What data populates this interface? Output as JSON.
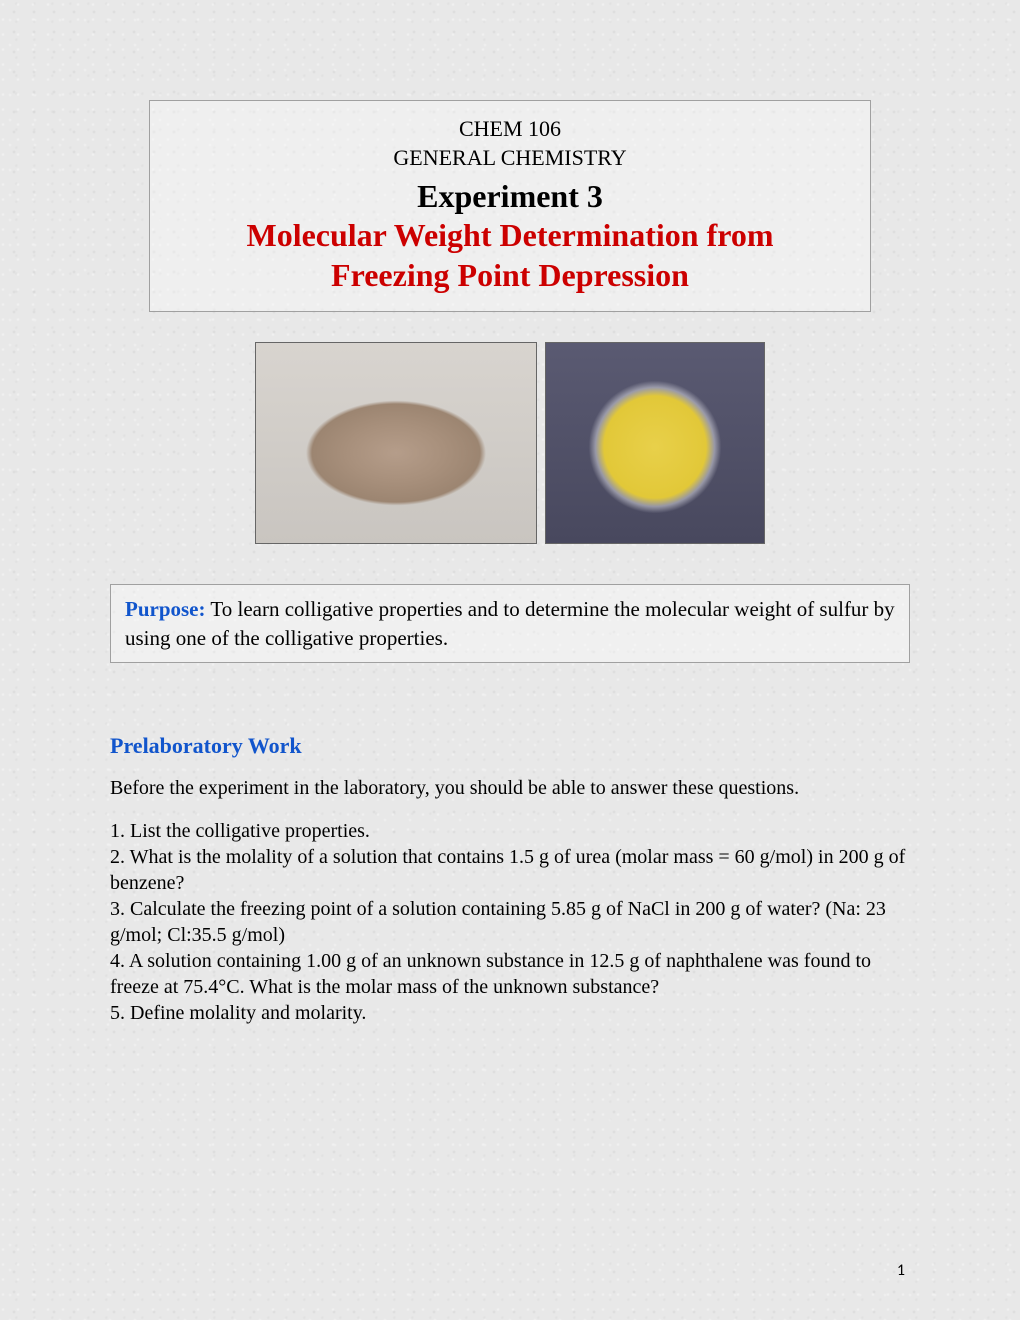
{
  "header": {
    "course_code": "CHEM 106",
    "course_name": "GENERAL CHEMISTRY",
    "experiment_label": "Experiment 3",
    "title_line1": "Molecular Weight Determination from",
    "title_line2": "Freezing Point Depression"
  },
  "colors": {
    "title_red": "#cc0000",
    "link_blue": "#1155cc",
    "box_border": "#a0a0a0",
    "background": "#e8e8e8"
  },
  "images": {
    "left_alt": "brown powder sample",
    "right_alt": "yellow sulfur powder in dish"
  },
  "purpose": {
    "label": "Purpose:",
    "text": " To learn colligative properties and to determine the molecular weight of sulfur by using one of the colligative properties."
  },
  "prelab": {
    "heading": "Prelaboratory Work",
    "intro": "Before the experiment in the laboratory, you should be able to answer these questions.",
    "q1": "1. List the colligative properties.",
    "q2": "2. What is the molality of a solution that contains 1.5 g of urea (molar mass = 60 g/mol) in 200 g of benzene?",
    "q3": "3. Calculate the freezing point of a solution containing 5.85 g of NaCl in 200 g of water? (Na: 23 g/mol; Cl:35.5 g/mol)",
    "q4": "4. A solution containing 1.00 g of an unknown substance in 12.5 g of naphthalene was found to freeze at 75.4°C. What is the molar mass of the unknown substance?",
    "q5": "5. Define molality and molarity."
  },
  "page_number": "1"
}
